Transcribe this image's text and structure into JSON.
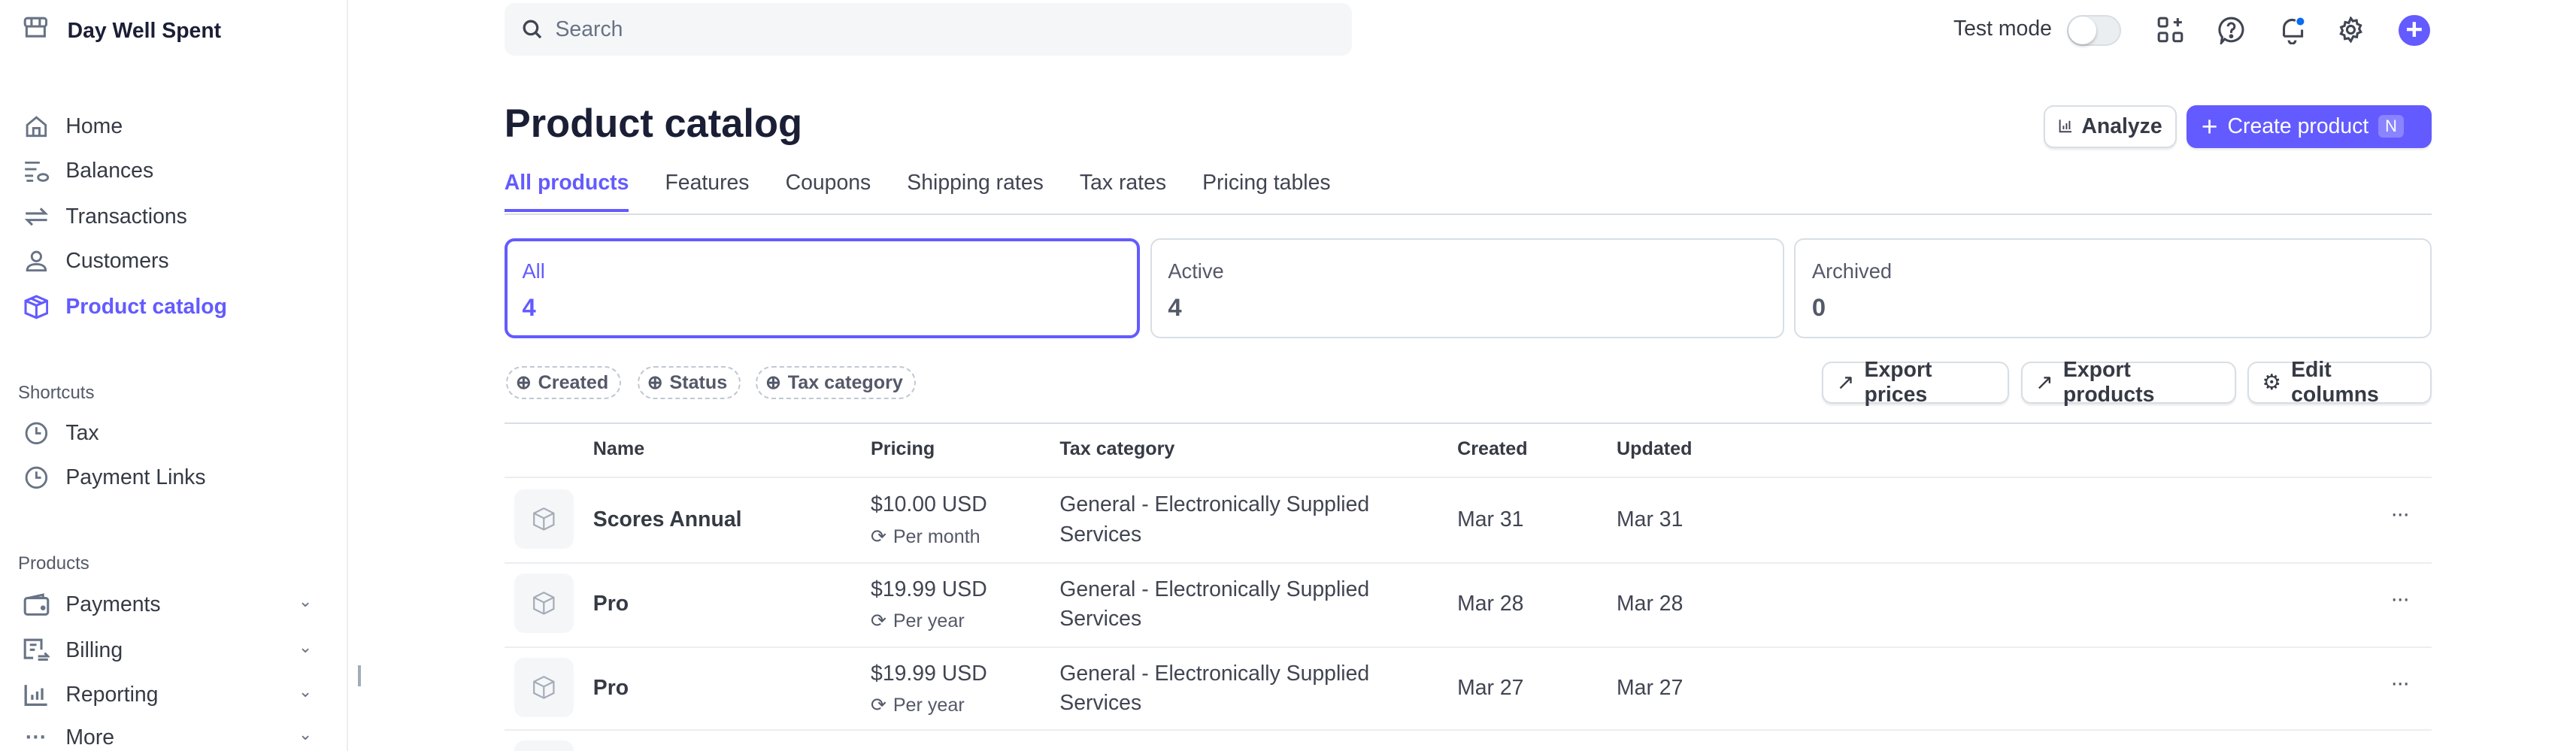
{
  "brand": {
    "name": "Day Well Spent"
  },
  "sidebar": {
    "items": [
      {
        "label": "Home",
        "icon": "home-icon"
      },
      {
        "label": "Balances",
        "icon": "balances-icon"
      },
      {
        "label": "Transactions",
        "icon": "transactions-icon"
      },
      {
        "label": "Customers",
        "icon": "customer-icon"
      },
      {
        "label": "Product catalog",
        "icon": "box-icon",
        "active": true
      }
    ],
    "shortcuts_label": "Shortcuts",
    "shortcuts": [
      {
        "label": "Tax",
        "icon": "clock-icon"
      },
      {
        "label": "Payment Links",
        "icon": "clock-icon"
      }
    ],
    "products_label": "Products",
    "products": [
      {
        "label": "Payments",
        "icon": "wallet-icon"
      },
      {
        "label": "Billing",
        "icon": "billing-icon"
      },
      {
        "label": "Reporting",
        "icon": "chart-icon"
      },
      {
        "label": "More",
        "icon": "more-icon"
      }
    ]
  },
  "topbar": {
    "search_placeholder": "Search",
    "test_mode_label": "Test mode",
    "test_mode_on": false
  },
  "page": {
    "title": "Product catalog",
    "analyze_label": "Analyze",
    "create_label": "Create product",
    "create_shortcut": "N"
  },
  "tabs": [
    {
      "label": "All products",
      "active": true
    },
    {
      "label": "Features"
    },
    {
      "label": "Coupons"
    },
    {
      "label": "Shipping rates"
    },
    {
      "label": "Tax rates"
    },
    {
      "label": "Pricing tables"
    }
  ],
  "summary": [
    {
      "label": "All",
      "value": "4",
      "active": true
    },
    {
      "label": "Active",
      "value": "4"
    },
    {
      "label": "Archived",
      "value": "0"
    }
  ],
  "filters": [
    {
      "label": "Created"
    },
    {
      "label": "Status"
    },
    {
      "label": "Tax category"
    }
  ],
  "actions": {
    "export_prices": "Export prices",
    "export_products": "Export products",
    "edit_columns": "Edit columns"
  },
  "table": {
    "headers": {
      "name": "Name",
      "pricing": "Pricing",
      "tax": "Tax category",
      "created": "Created",
      "updated": "Updated"
    },
    "rows": [
      {
        "name": "Scores Annual",
        "price": "$10.00 USD",
        "interval": "Per month",
        "tax1": "General - Electronically Supplied",
        "tax2": "Services",
        "created": "Mar 31",
        "updated": "Mar 31"
      },
      {
        "name": "Pro",
        "price": "$19.99 USD",
        "interval": "Per year",
        "tax1": "General - Electronically Supplied",
        "tax2": "Services",
        "created": "Mar 28",
        "updated": "Mar 28"
      },
      {
        "name": "Pro",
        "price": "$19.99 USD",
        "interval": "Per year",
        "tax1": "General - Electronically Supplied",
        "tax2": "Services",
        "created": "Mar 27",
        "updated": "Mar 27"
      }
    ]
  },
  "colors": {
    "accent": "#635bff",
    "text": "#353a44",
    "border": "#d8dee4"
  }
}
